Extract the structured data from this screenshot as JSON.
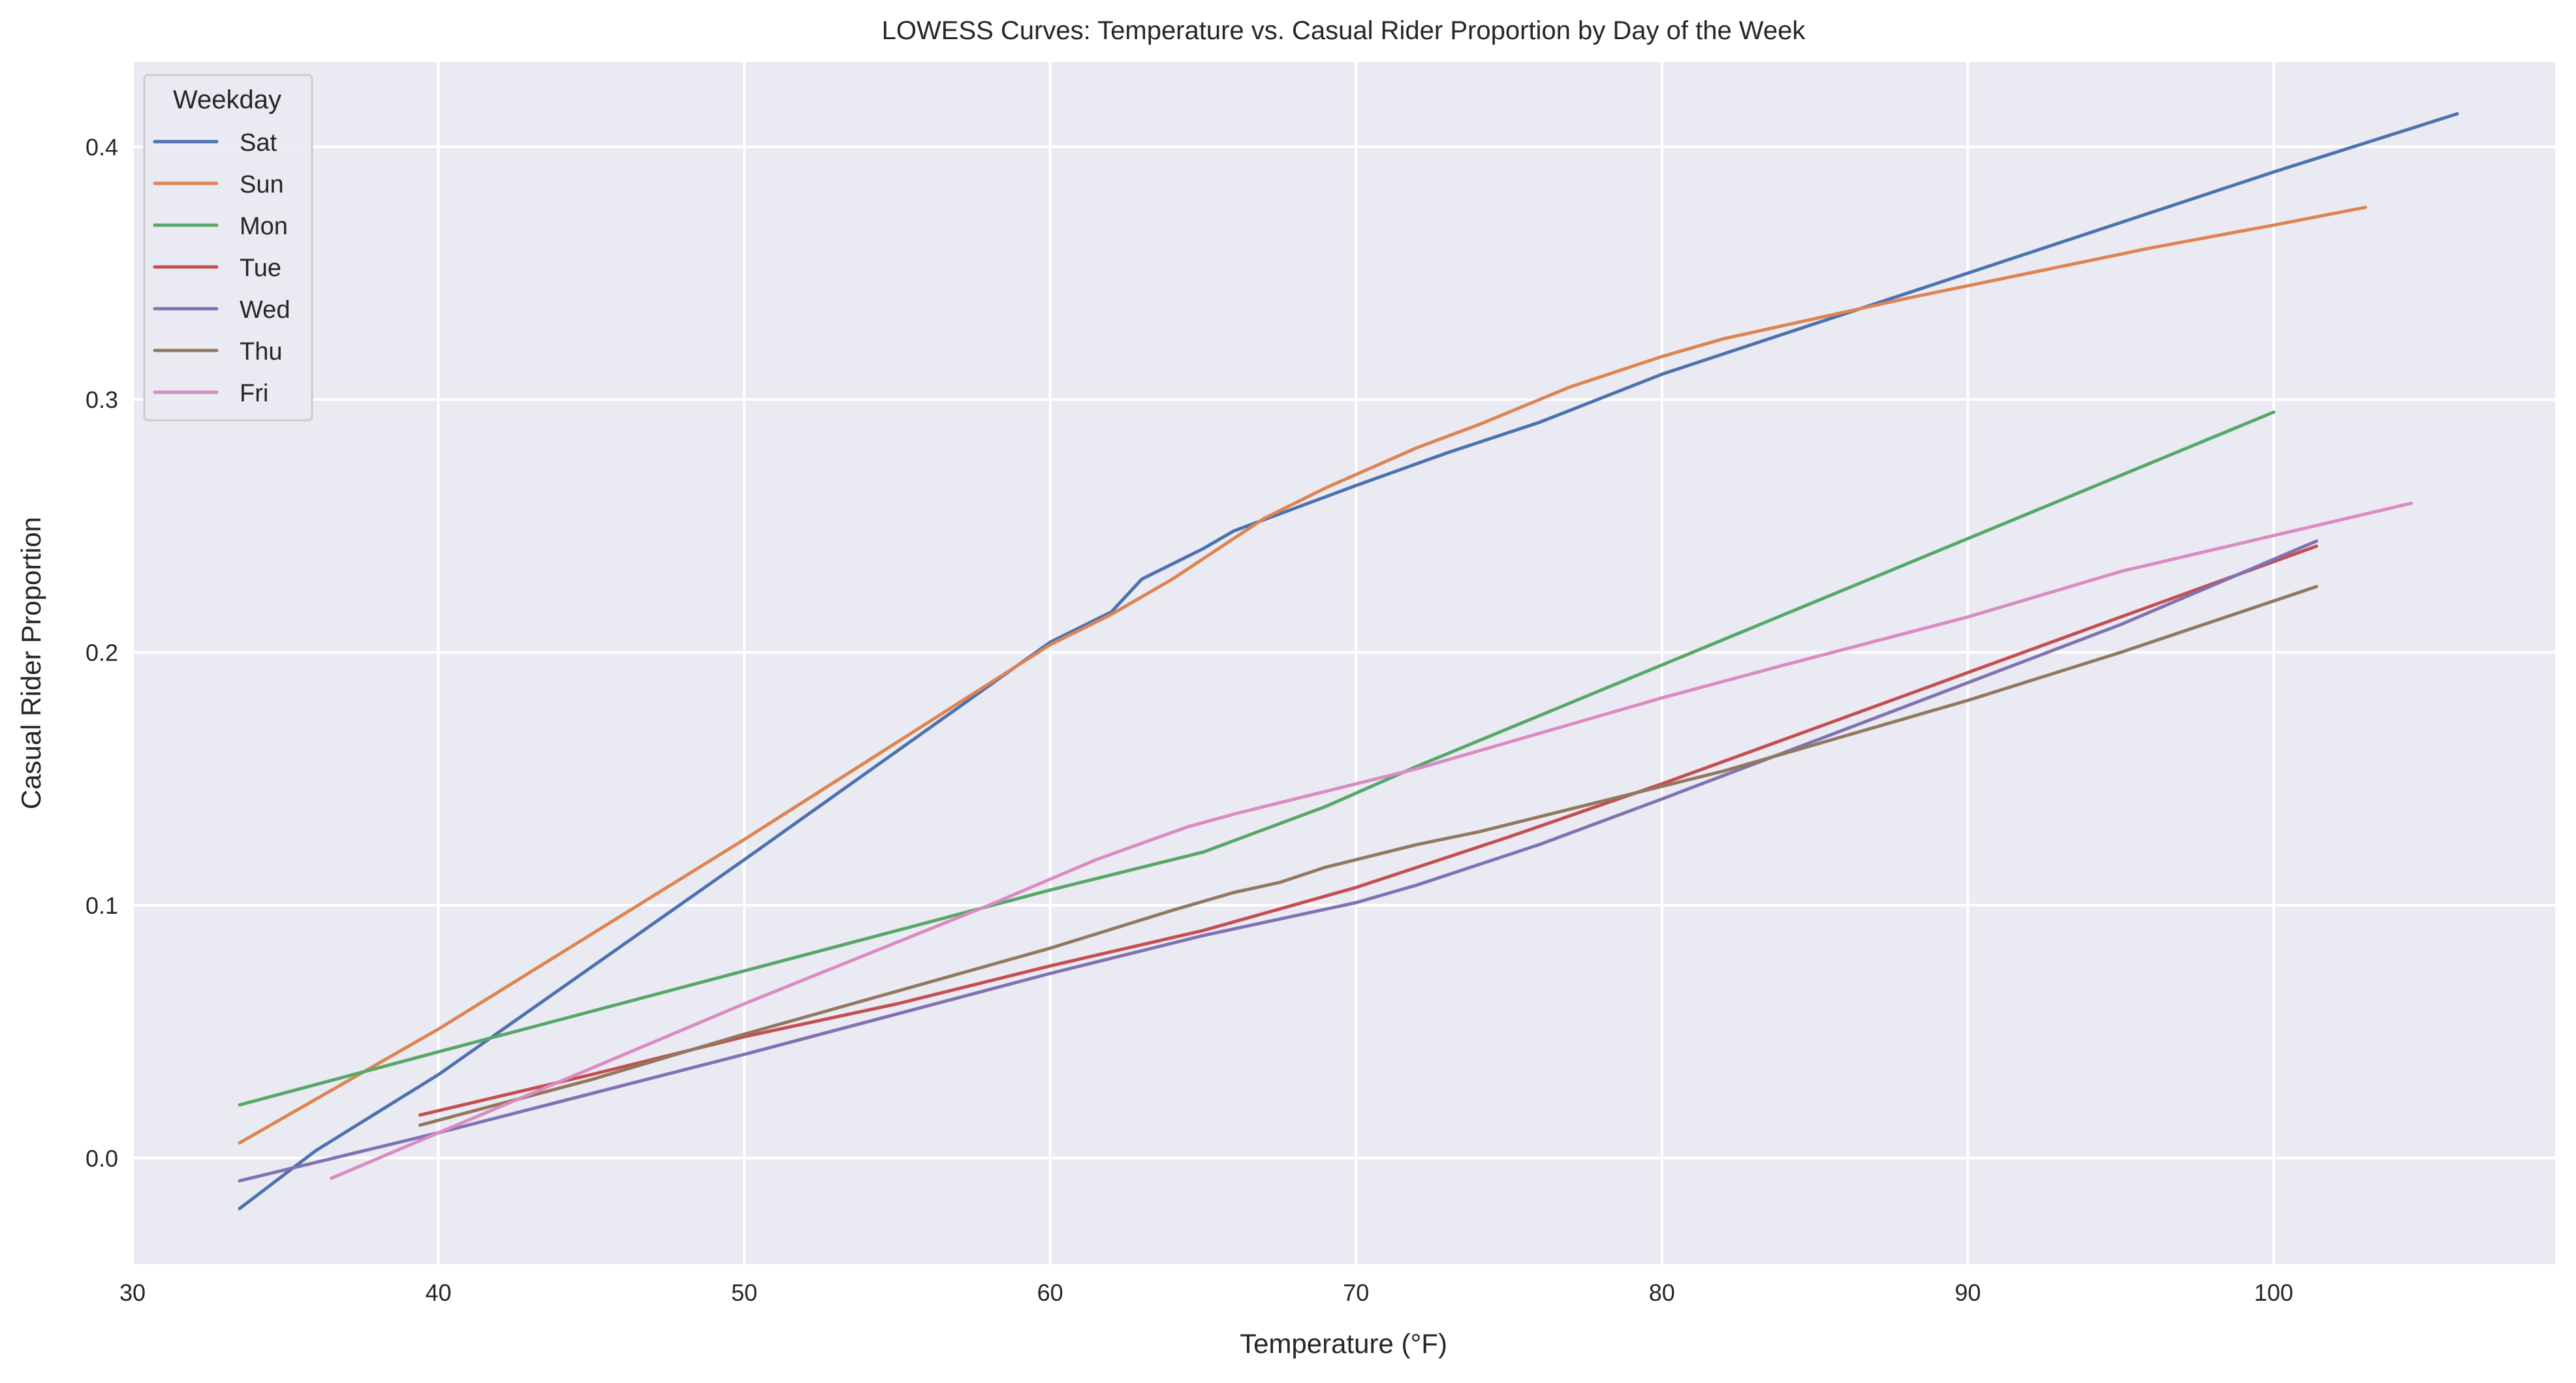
{
  "chart_data": {
    "type": "line",
    "title": "LOWESS Curves: Temperature vs. Casual Rider Proportion by Day of the Week",
    "xlabel": "Temperature (°F)",
    "ylabel": "Casual Rider Proportion",
    "xlim": [
      30,
      109.2
    ],
    "ylim": [
      -0.042,
      0.4335
    ],
    "xticks": [
      30,
      40,
      50,
      60,
      70,
      80,
      90,
      100
    ],
    "xtick_labels": [
      "30",
      "40",
      "50",
      "60",
      "70",
      "80",
      "90",
      "100"
    ],
    "yticks": [
      0.0,
      0.1,
      0.2,
      0.3,
      0.4
    ],
    "ytick_labels": [
      "0.0",
      "0.1",
      "0.2",
      "0.3",
      "0.4"
    ],
    "grid": true,
    "background": "#eaeaf2",
    "legend": {
      "title": "Weekday",
      "placement": "top-left"
    },
    "series": [
      {
        "name": "Sat",
        "color": "#4c72b0",
        "x": [
          33.5,
          36,
          40,
          50,
          60,
          62,
          63,
          65,
          66,
          68,
          70,
          73,
          76,
          80,
          85,
          90,
          95,
          100,
          106
        ],
        "y": [
          -0.02,
          0.003,
          0.033,
          0.118,
          0.204,
          0.216,
          0.229,
          0.241,
          0.248,
          0.257,
          0.266,
          0.279,
          0.291,
          0.31,
          0.33,
          0.35,
          0.37,
          0.39,
          0.413
        ]
      },
      {
        "name": "Sun",
        "color": "#dd8452",
        "x": [
          33.5,
          40,
          50,
          60,
          62,
          64,
          66,
          67,
          69,
          72,
          74,
          77,
          80,
          82,
          85,
          88,
          92,
          96,
          100,
          103
        ],
        "y": [
          0.006,
          0.051,
          0.126,
          0.203,
          0.215,
          0.229,
          0.245,
          0.253,
          0.265,
          0.281,
          0.29,
          0.305,
          0.317,
          0.324,
          0.332,
          0.34,
          0.35,
          0.36,
          0.369,
          0.376
        ]
      },
      {
        "name": "Mon",
        "color": "#55a868",
        "x": [
          33.5,
          40,
          50,
          60,
          63,
          65,
          67,
          69,
          72,
          80,
          90,
          100
        ],
        "y": [
          0.021,
          0.042,
          0.074,
          0.106,
          0.115,
          0.121,
          0.13,
          0.139,
          0.155,
          0.195,
          0.245,
          0.295
        ]
      },
      {
        "name": "Tue",
        "color": "#c44e52",
        "x": [
          39.4,
          45,
          50,
          55,
          60,
          65,
          70,
          75,
          80,
          85,
          90,
          95,
          101.4
        ],
        "y": [
          0.017,
          0.033,
          0.048,
          0.061,
          0.076,
          0.09,
          0.107,
          0.127,
          0.148,
          0.17,
          0.192,
          0.214,
          0.242
        ]
      },
      {
        "name": "Wed",
        "color": "#8172b3",
        "x": [
          33.5,
          40,
          50,
          60,
          65,
          70,
          72,
          76,
          80,
          85,
          90,
          95,
          101.4
        ],
        "y": [
          -0.009,
          0.01,
          0.041,
          0.073,
          0.088,
          0.101,
          0.108,
          0.124,
          0.142,
          0.165,
          0.188,
          0.211,
          0.244
        ]
      },
      {
        "name": "Thu",
        "color": "#937860",
        "x": [
          39.4,
          45,
          50,
          55,
          60,
          64,
          66,
          67.5,
          69,
          72,
          74,
          78,
          82,
          86,
          90,
          95,
          101.4
        ],
        "y": [
          0.013,
          0.031,
          0.049,
          0.066,
          0.083,
          0.098,
          0.105,
          0.109,
          0.115,
          0.124,
          0.129,
          0.141,
          0.153,
          0.167,
          0.181,
          0.2,
          0.226
        ]
      },
      {
        "name": "Fri",
        "color": "#da8bc3",
        "x": [
          36.5,
          40,
          50,
          58,
          61.5,
          64.5,
          66,
          68,
          72,
          76,
          80,
          84,
          90,
          95,
          104.5
        ],
        "y": [
          -0.008,
          0.01,
          0.061,
          0.1,
          0.118,
          0.131,
          0.136,
          0.142,
          0.154,
          0.168,
          0.182,
          0.195,
          0.214,
          0.232,
          0.259
        ]
      }
    ]
  }
}
